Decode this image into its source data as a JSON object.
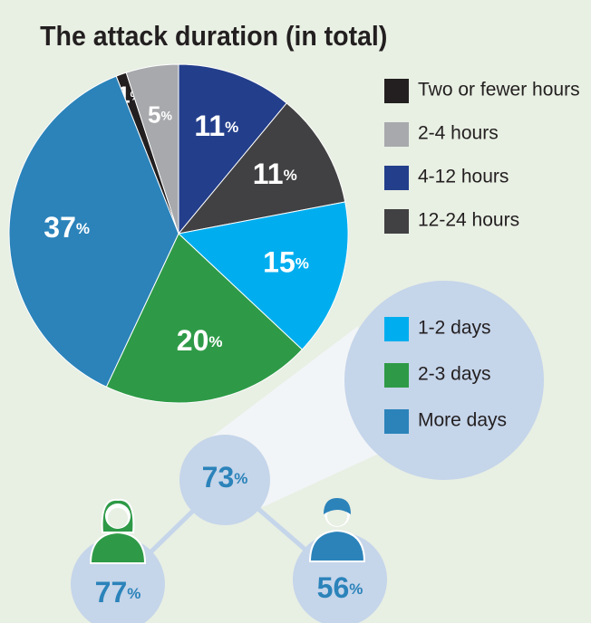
{
  "chart_data": {
    "type": "pie",
    "title": "The attack duration (in total)",
    "unit": "%",
    "series": [
      {
        "name": "Two or fewer hours",
        "color": "#231f20",
        "values": [
          1
        ]
      },
      {
        "name": "2-4 hours",
        "color": "#a7a9ac",
        "values": [
          5
        ]
      },
      {
        "name": "4-12 hours",
        "color": "#233e8b",
        "values": [
          11
        ]
      },
      {
        "name": "12-24 hours",
        "color": "#414042",
        "values": [
          11
        ]
      },
      {
        "name": "1-2 days",
        "color": "#00aeef",
        "values": [
          15
        ]
      },
      {
        "name": "2-3 days",
        "color": "#2e9a47",
        "values": [
          20
        ]
      },
      {
        "name": "More days",
        "color": "#2b83ba",
        "values": [
          37
        ]
      }
    ],
    "callouts": [
      73,
      77,
      56
    ]
  }
}
